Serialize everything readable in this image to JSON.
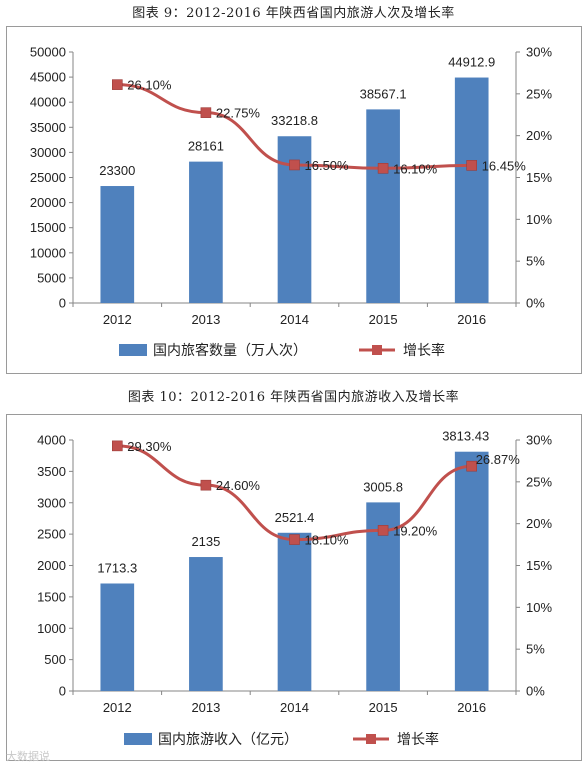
{
  "figures": [
    {
      "caption": "图表 9：2012-2016 年陕西省国内旅游人次及增长率"
    },
    {
      "caption": "图表 10：2012-2016 年陕西省国内旅游收入及增长率"
    }
  ],
  "watermark": "大数据说",
  "chart_data": [
    {
      "type": "bar",
      "title": "",
      "categories": [
        "2012",
        "2013",
        "2014",
        "2015",
        "2016"
      ],
      "series": [
        {
          "name": "国内旅客数量（万人次）",
          "type": "bar",
          "axis": "left",
          "values": [
            23300,
            28161,
            33218.8,
            38567.1,
            44912.9
          ],
          "labels": [
            "23300",
            "28161",
            "33218.8",
            "38567.1",
            "44912.9"
          ]
        },
        {
          "name": "增长率",
          "type": "line",
          "axis": "right",
          "values": [
            26.1,
            22.75,
            16.5,
            16.1,
            16.45
          ],
          "labels": [
            "26.10%",
            "22.75%",
            "16.50%",
            "16.10%",
            "16.45%"
          ]
        }
      ],
      "ylim": [
        0,
        50000
      ],
      "yticks": [
        "0",
        "5000",
        "10000",
        "15000",
        "20000",
        "25000",
        "30000",
        "35000",
        "40000",
        "45000",
        "50000"
      ],
      "y2lim": [
        0,
        30
      ],
      "y2ticks": [
        "0%",
        "5%",
        "10%",
        "15%",
        "20%",
        "25%",
        "30%"
      ],
      "legend": "bottom",
      "colors": {
        "bar": "#4f81bd",
        "line": "#c0504d"
      }
    },
    {
      "type": "bar",
      "title": "",
      "categories": [
        "2012",
        "2013",
        "2014",
        "2015",
        "2016"
      ],
      "series": [
        {
          "name": "国内旅游收入（亿元）",
          "type": "bar",
          "axis": "left",
          "values": [
            1713.3,
            2135,
            2521.4,
            3005.8,
            3813.43
          ],
          "labels": [
            "1713.3",
            "2135",
            "2521.4",
            "3005.8",
            "3813.43"
          ]
        },
        {
          "name": "增长率",
          "type": "line",
          "axis": "right",
          "values": [
            29.3,
            24.6,
            18.1,
            19.2,
            26.87
          ],
          "labels": [
            "29.30%",
            "24.60%",
            "18.10%",
            "19.20%",
            "26.87%"
          ]
        }
      ],
      "ylim": [
        0,
        4000
      ],
      "yticks": [
        "0",
        "500",
        "1000",
        "1500",
        "2000",
        "2500",
        "3000",
        "3500",
        "4000"
      ],
      "y2lim": [
        0,
        30
      ],
      "y2ticks": [
        "0%",
        "5%",
        "10%",
        "15%",
        "20%",
        "25%",
        "30%"
      ],
      "legend": "bottom",
      "colors": {
        "bar": "#4f81bd",
        "line": "#c0504d"
      }
    }
  ]
}
